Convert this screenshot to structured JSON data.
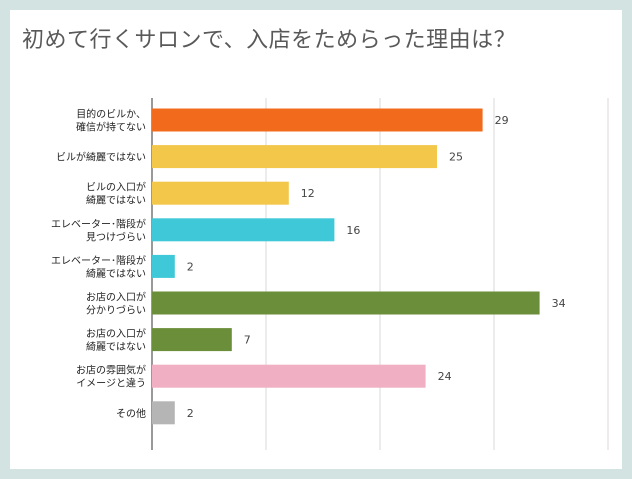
{
  "title": "初めて行くサロンで、入店をためらった理由は？",
  "chart_data": {
    "type": "bar",
    "orientation": "horizontal",
    "title": "初めて行くサロンで、入店をためらった理由は？",
    "xlabel": "",
    "ylabel": "",
    "xlim": [
      0,
      40
    ],
    "grid": true,
    "categories": [
      [
        "目的のビルか、",
        "確信が持てない"
      ],
      [
        "ビルが綺麗ではない"
      ],
      [
        "ビルの入口が",
        "綺麗ではない"
      ],
      [
        "エレベーター･階段が",
        "見つけづらい"
      ],
      [
        "エレベーター･階段が",
        "綺麗ではない"
      ],
      [
        "お店の入口が",
        "分かりづらい"
      ],
      [
        "お店の入口が",
        "綺麗ではない"
      ],
      [
        "お店の雰囲気が",
        "イメージと違う"
      ],
      [
        "その他"
      ]
    ],
    "values": [
      29,
      25,
      12,
      16,
      2,
      34,
      7,
      24,
      2
    ],
    "colors": [
      "#f26b1d",
      "#f2c74a",
      "#f2c74a",
      "#3fc8d8",
      "#3fc8d8",
      "#6b8e3a",
      "#6b8e3a",
      "#f0afc2",
      "#b5b5b5"
    ]
  }
}
